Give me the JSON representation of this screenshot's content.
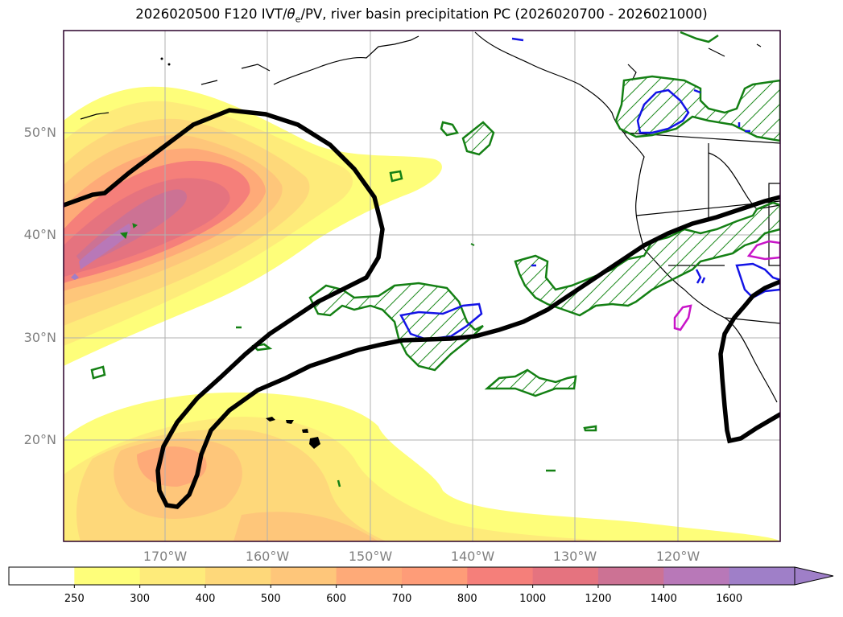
{
  "title": {
    "prefix": "2026020500 F120 IVT/",
    "theta": "θ",
    "theta_sub": "e",
    "suffix": "/PV, river basin precipitation PC (2026020700 - 2026021000)"
  },
  "map": {
    "lat_labels": [
      "50°N",
      "40°N",
      "30°N",
      "20°N"
    ],
    "lon_labels": [
      "170°W",
      "160°W",
      "150°W",
      "140°W",
      "130°W",
      "120°W"
    ]
  },
  "colorbar": {
    "ticks": [
      "250",
      "300",
      "400",
      "500",
      "600",
      "700",
      "800",
      "1000",
      "1200",
      "1400",
      "1600"
    ],
    "colors": [
      "#ffffff",
      "#fefe7a",
      "#feeb7a",
      "#fed87a",
      "#fec67a",
      "#feaa78",
      "#fe9c78",
      "#f57f7a",
      "#e5737f",
      "#cc7294",
      "#b878b8",
      "#9f7fc8"
    ]
  }
}
